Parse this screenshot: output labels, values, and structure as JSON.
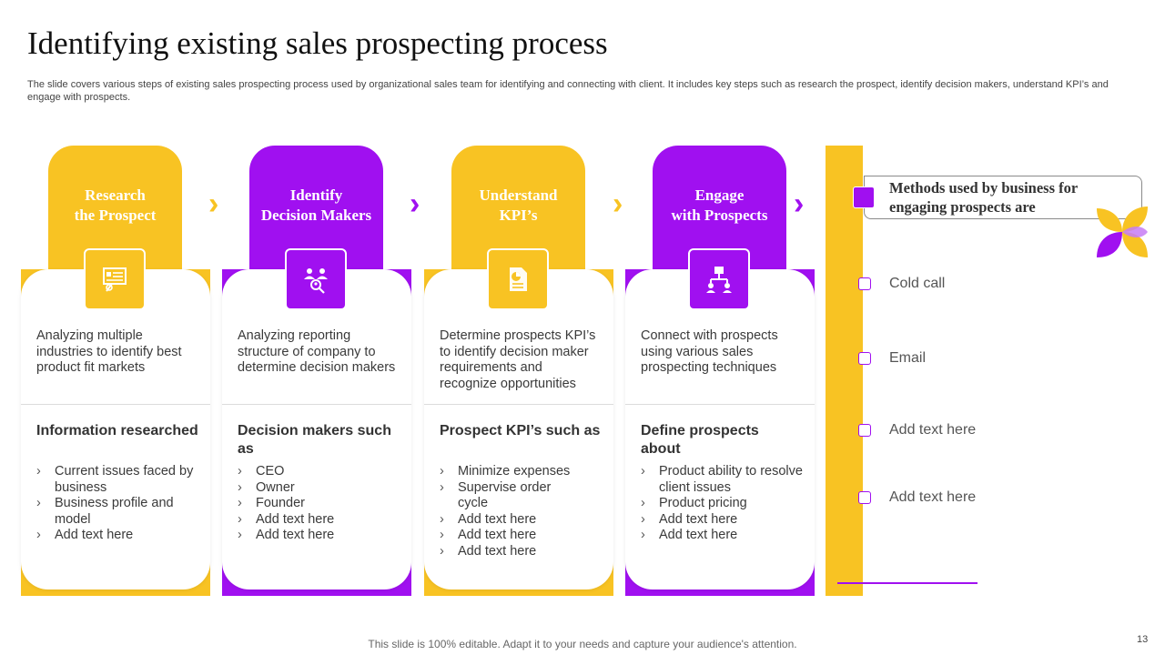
{
  "slide": {
    "title": "Identifying existing sales prospecting process",
    "subtitle": "The slide covers various steps of existing sales prospecting process used by organizational sales team for identifying and connecting with client. It includes key steps such as research the prospect, identify decision makers, understand KPI’s and engage with prospects.",
    "footer": "This slide is 100% editable. Adapt it to your needs and capture your audience's attention.",
    "page_number": "13"
  },
  "colors": {
    "accent_yellow": "#f8c323",
    "accent_purple": "#a010f0"
  },
  "steps": [
    {
      "heading_line1": "Research",
      "heading_line2": "the Prospect",
      "icon": "research-presentation-icon",
      "description": "Analyzing multiple industries to identify best product fit markets",
      "list_title": "Information researched",
      "items": [
        "Current issues faced by business",
        "Business profile and model",
        "Add text here"
      ]
    },
    {
      "heading_line1": "Identify",
      "heading_line2": "Decision Makers",
      "icon": "team-search-icon",
      "description": "Analyzing reporting structure of company to determine decision makers",
      "list_title": "Decision makers such as",
      "items": [
        "CEO",
        "Owner",
        "Founder",
        "Add text here",
        "Add text here"
      ]
    },
    {
      "heading_line1": "Understand",
      "heading_line2": "KPI’s",
      "icon": "report-document-icon",
      "description": "Determine prospects KPI’s to identify decision maker requirements and recognize opportunities",
      "list_title": "Prospect KPI’s such as",
      "items": [
        "Minimize expenses",
        "Supervise order cycle",
        "Add text here",
        "Add text here",
        "Add text here"
      ]
    },
    {
      "heading_line1": "Engage",
      "heading_line2": "with Prospects",
      "icon": "org-network-icon",
      "description": "Connect with prospects using various sales prospecting techniques",
      "list_title": "Define prospects about",
      "items": [
        "Product ability to resolve client issues",
        "Product pricing",
        "Add text here",
        "Add text here"
      ]
    }
  ],
  "methods": {
    "title": "Methods used by business for engaging prospects are",
    "items": [
      "Cold call",
      "Email",
      "Add text here",
      "Add text here"
    ]
  }
}
